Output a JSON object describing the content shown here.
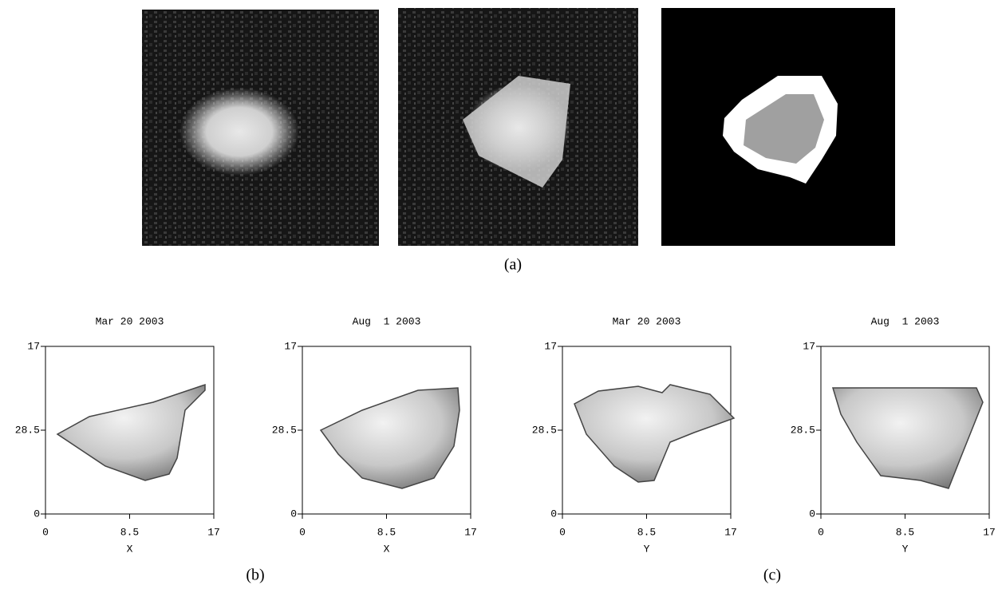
{
  "figure": {
    "captions": [
      "(a)",
      "(b)",
      "(c)"
    ],
    "panels": [
      {
        "title": "Mar 20 2003",
        "yticks": [
          "17",
          "28.5",
          "0"
        ],
        "xticks": [
          "0",
          "8.5",
          "17"
        ],
        "xlabel": "X"
      },
      {
        "title": "Aug  1 2003",
        "yticks": [
          "17",
          "28.5",
          "0"
        ],
        "xticks": [
          "0",
          "8.5",
          "17"
        ],
        "xlabel": "X"
      },
      {
        "title": "Mar 20 2003",
        "yticks": [
          "17",
          "28.5",
          "0"
        ],
        "xticks": [
          "0",
          "8.5",
          "17"
        ],
        "xlabel": "Y"
      },
      {
        "title": "Aug  1 2003",
        "yticks": [
          "17",
          "28.5",
          "0"
        ],
        "xticks": [
          "0",
          "8.5",
          "17"
        ],
        "xlabel": "Y"
      }
    ]
  }
}
